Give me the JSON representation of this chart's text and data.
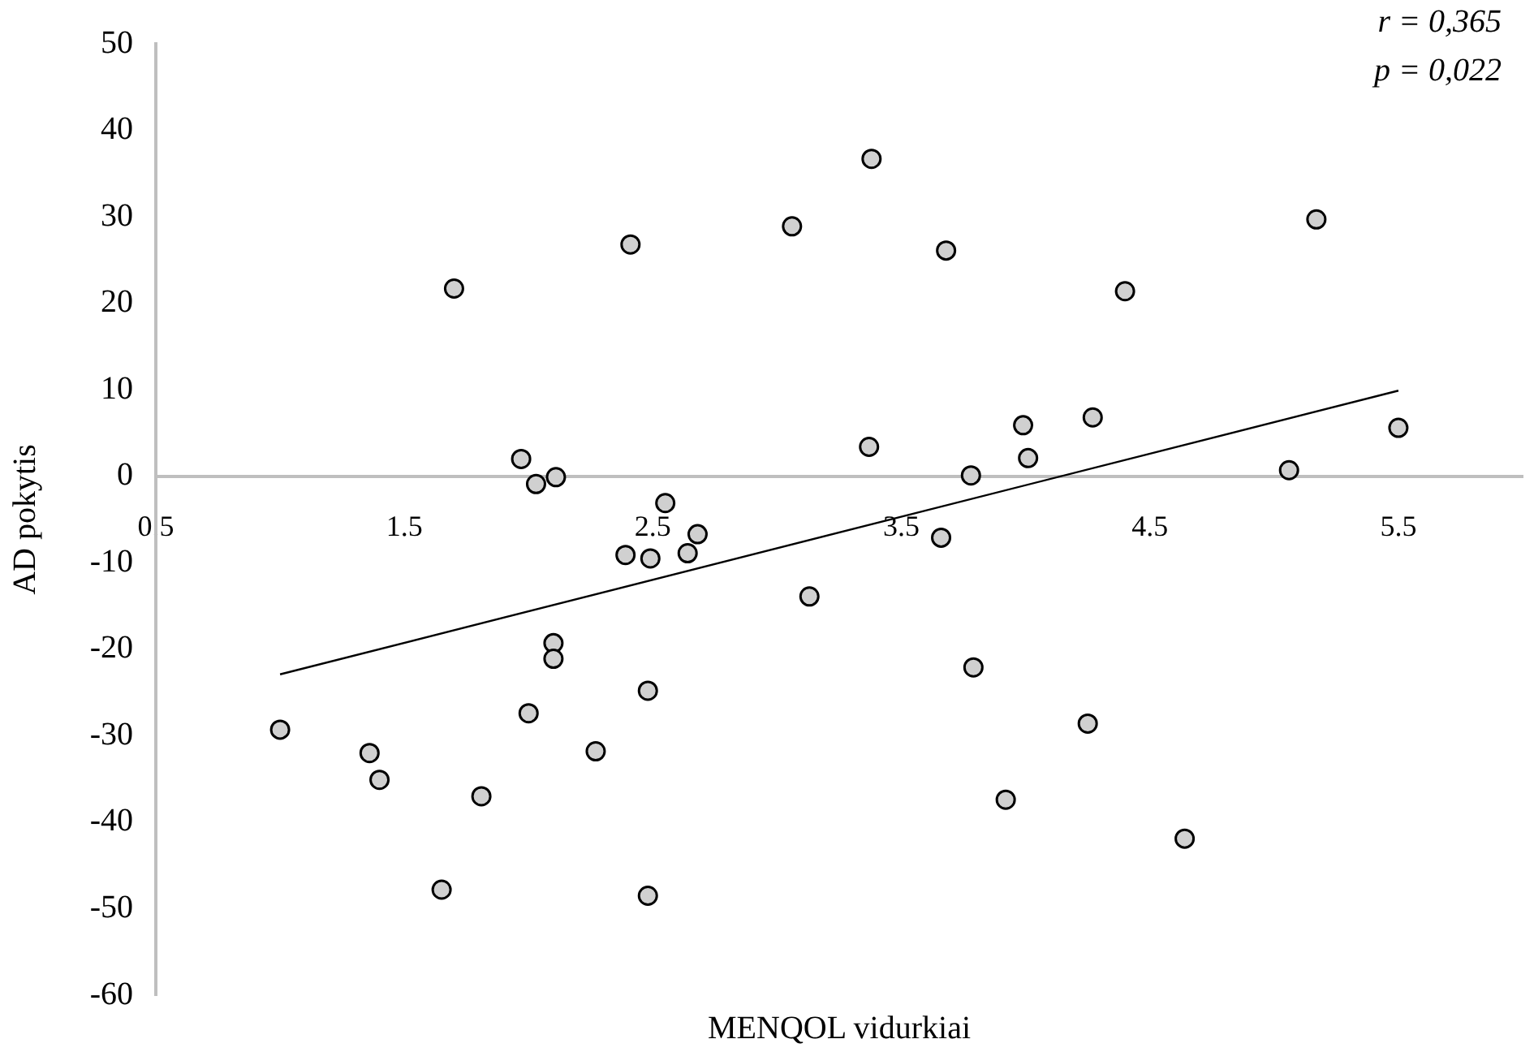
{
  "chart_data": {
    "type": "scatter",
    "xlabel": "MENQOL vidurkiai",
    "ylabel": "AD pokytis",
    "annotations": [
      "r = 0,365",
      "p = 0,022"
    ],
    "xlim": [
      0.5,
      6
    ],
    "xticks": [
      0.5,
      1.5,
      2.5,
      3.5,
      4.5,
      5.5
    ],
    "ylim": [
      -60,
      50
    ],
    "yticks": [
      -60,
      -50,
      -40,
      -30,
      -20,
      -10,
      0,
      10,
      20,
      30,
      40,
      50
    ],
    "grid": false,
    "legend": false,
    "marker": "circle",
    "series": [
      {
        "type": "scatter",
        "color": "#d0d0d0",
        "x": [
          1.7,
          2.41,
          1.97,
          2.03,
          2.11,
          2.55,
          2.68,
          2.39,
          2.49,
          2.64,
          2.1,
          2.1,
          2.48,
          2.0,
          1.0,
          1.36,
          2.27,
          1.4,
          1.81,
          1.65,
          2.48,
          3.38,
          3.06,
          3.68,
          4.4,
          5.17,
          3.37,
          3.99,
          4.27,
          4.01,
          3.78,
          5.06,
          5.5,
          3.66,
          3.13,
          3.79,
          4.25,
          3.92,
          4.64
        ],
        "values": [
          21.7,
          26.8,
          2.0,
          -0.9,
          -0.1,
          -3.1,
          -6.7,
          -9.1,
          -9.5,
          -8.9,
          -19.3,
          -21.1,
          -24.8,
          -27.4,
          -29.3,
          -32.0,
          -31.8,
          -35.1,
          -37.0,
          -47.8,
          -48.5,
          36.7,
          28.9,
          26.1,
          21.4,
          29.7,
          3.4,
          5.9,
          6.8,
          2.1,
          0.1,
          0.7,
          5.6,
          -7.1,
          -13.9,
          -22.1,
          -28.6,
          -37.4,
          -41.9
        ]
      },
      {
        "type": "line",
        "color": "#000000",
        "marker": "none",
        "x": [
          1.0,
          5.5
        ],
        "values": [
          -22.9,
          9.9
        ]
      }
    ]
  }
}
